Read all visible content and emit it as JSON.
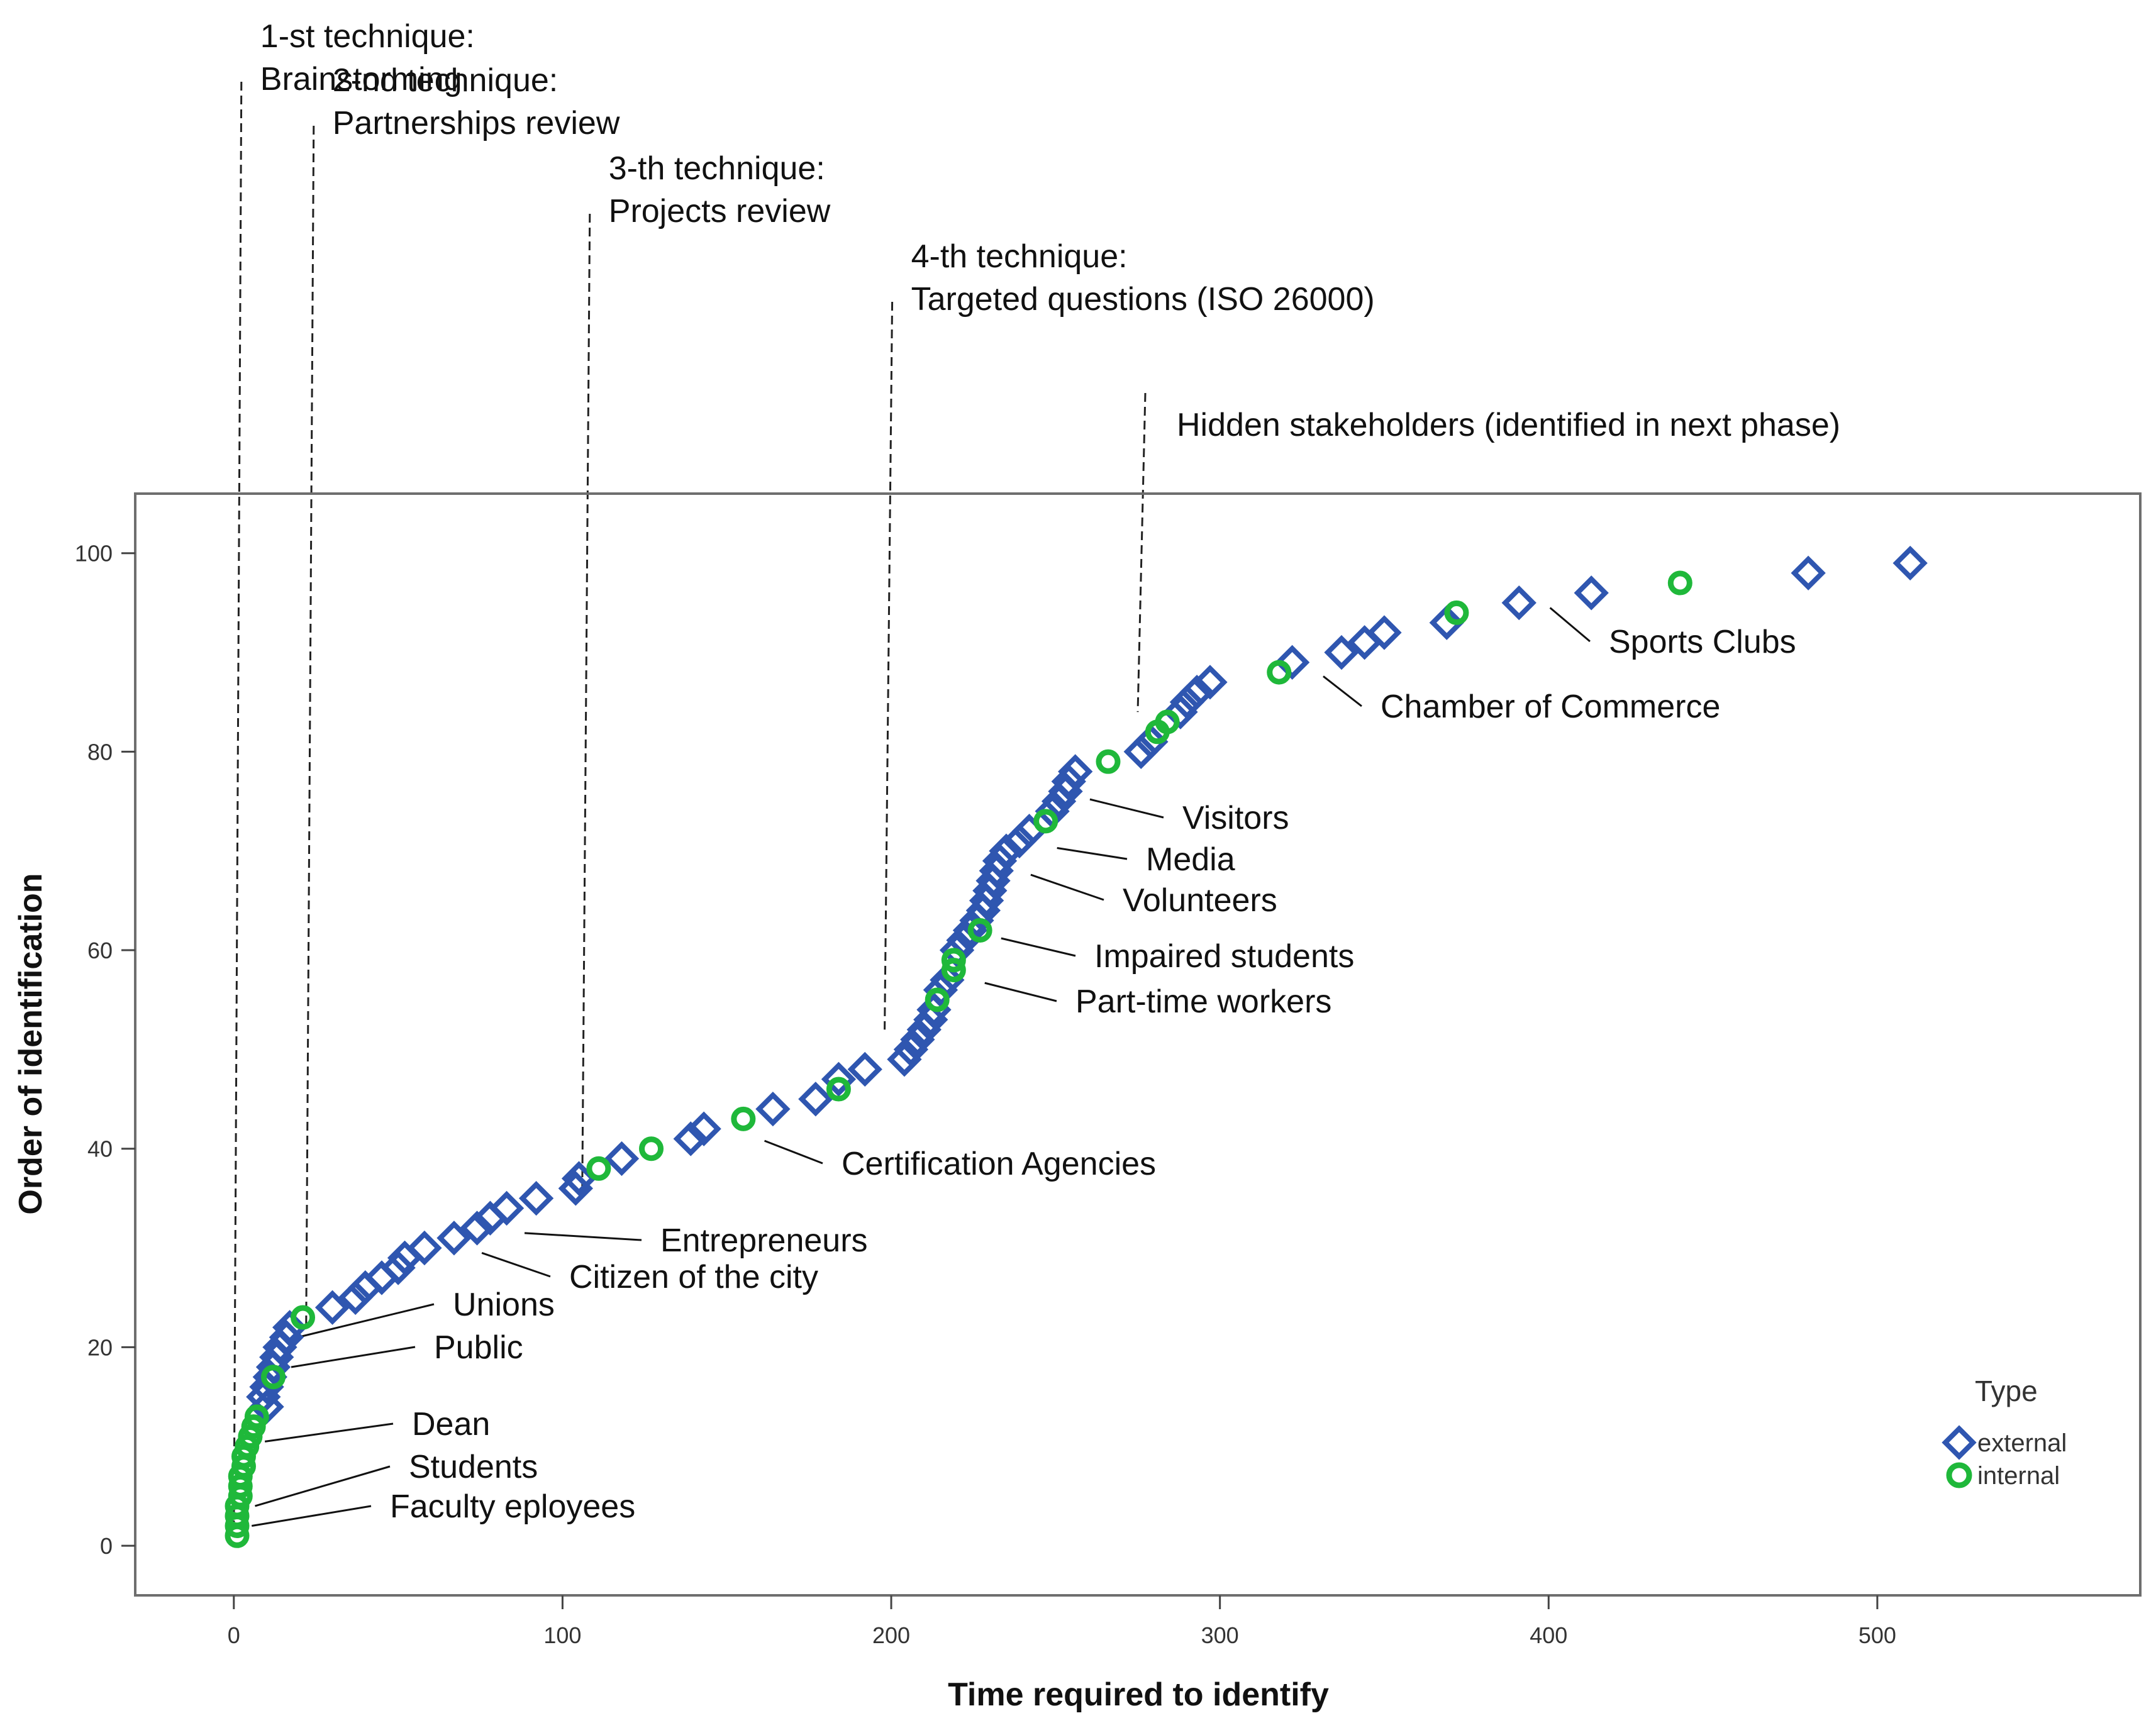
{
  "chart_data": {
    "type": "scatter",
    "xlabel": "Time required to identify",
    "ylabel": "Order of identification",
    "xlim": [
      -30,
      580
    ],
    "ylim": [
      -5,
      106
    ],
    "xticks": [
      0,
      100,
      200,
      300,
      400,
      500
    ],
    "yticks": [
      0,
      20,
      40,
      60,
      80,
      100
    ],
    "legend": {
      "title": "Type",
      "position": "bottom-right",
      "entries": [
        {
          "name": "external",
          "marker": "diamond",
          "color": "#2f56b0"
        },
        {
          "name": "internal",
          "marker": "circle",
          "color": "#1fb83a"
        }
      ]
    },
    "series": [
      {
        "name": "external",
        "marker": "diamond",
        "color": "#2f56b0",
        "points": [
          [
            10,
            14
          ],
          [
            9,
            15
          ],
          [
            10,
            16
          ],
          [
            11,
            17
          ],
          [
            12,
            18
          ],
          [
            13,
            19
          ],
          [
            14,
            20
          ],
          [
            16,
            21
          ],
          [
            17,
            22
          ],
          [
            30,
            24
          ],
          [
            37,
            25
          ],
          [
            40,
            26
          ],
          [
            45,
            27
          ],
          [
            50,
            28
          ],
          [
            52,
            29
          ],
          [
            58,
            30
          ],
          [
            67,
            31
          ],
          [
            74,
            32
          ],
          [
            78,
            33
          ],
          [
            83,
            34
          ],
          [
            92,
            35
          ],
          [
            104,
            36
          ],
          [
            105,
            37
          ],
          [
            118,
            39
          ],
          [
            139,
            41
          ],
          [
            143,
            42
          ],
          [
            164,
            44
          ],
          [
            177,
            45
          ],
          [
            184,
            47
          ],
          [
            192,
            48
          ],
          [
            204,
            49
          ],
          [
            206,
            50
          ],
          [
            208,
            51
          ],
          [
            210,
            52
          ],
          [
            212,
            53
          ],
          [
            213,
            54
          ],
          [
            215,
            56
          ],
          [
            217,
            57
          ],
          [
            220,
            60
          ],
          [
            222,
            61
          ],
          [
            224,
            62
          ],
          [
            226,
            63
          ],
          [
            228,
            64
          ],
          [
            229,
            65
          ],
          [
            230,
            66
          ],
          [
            231,
            67
          ],
          [
            232,
            68
          ],
          [
            233,
            69
          ],
          [
            235,
            70
          ],
          [
            239,
            71
          ],
          [
            242,
            72
          ],
          [
            249,
            74
          ],
          [
            251,
            75
          ],
          [
            253,
            76
          ],
          [
            254,
            77
          ],
          [
            256,
            78
          ],
          [
            276,
            80
          ],
          [
            279,
            81
          ],
          [
            288,
            84
          ],
          [
            290,
            85
          ],
          [
            293,
            86
          ],
          [
            297,
            87
          ],
          [
            322,
            89
          ],
          [
            337,
            90
          ],
          [
            344,
            91
          ],
          [
            350,
            92
          ],
          [
            369,
            93
          ],
          [
            391,
            95
          ],
          [
            413,
            96
          ],
          [
            479,
            98
          ],
          [
            510,
            99
          ]
        ]
      },
      {
        "name": "internal",
        "marker": "circle",
        "color": "#1fb83a",
        "points": [
          [
            1,
            1
          ],
          [
            1,
            2
          ],
          [
            1,
            3
          ],
          [
            1,
            4
          ],
          [
            2,
            5
          ],
          [
            2,
            6
          ],
          [
            2,
            7
          ],
          [
            3,
            8
          ],
          [
            3,
            9
          ],
          [
            4,
            10
          ],
          [
            5,
            11
          ],
          [
            6,
            12
          ],
          [
            7,
            13
          ],
          [
            12,
            17
          ],
          [
            21,
            23
          ],
          [
            111,
            38
          ],
          [
            127,
            40
          ],
          [
            155,
            43
          ],
          [
            184,
            46
          ],
          [
            214,
            55
          ],
          [
            219,
            58
          ],
          [
            219,
            59
          ],
          [
            227,
            62
          ],
          [
            247,
            73
          ],
          [
            266,
            79
          ],
          [
            281,
            82
          ],
          [
            284,
            83
          ],
          [
            318,
            88
          ],
          [
            372,
            94
          ],
          [
            440,
            97
          ]
        ]
      }
    ],
    "annotations": [
      {
        "label": "Faculty eployees",
        "x": 2,
        "y": 2
      },
      {
        "label": "Students",
        "x": 3,
        "y": 4
      },
      {
        "label": "Dean",
        "x": 6,
        "y": 10.5
      },
      {
        "label": "Public",
        "x": 14,
        "y": 18
      },
      {
        "label": "Unions",
        "x": 16,
        "y": 21
      },
      {
        "label": "Citizen of the city",
        "x": 72,
        "y": 29.5
      },
      {
        "label": "Entrepreneurs",
        "x": 85,
        "y": 31.5
      },
      {
        "label": "Certification Agencies",
        "x": 158,
        "y": 40.8
      },
      {
        "label": "Part-time workers",
        "x": 225,
        "y": 56.7
      },
      {
        "label": "Impaired students",
        "x": 230,
        "y": 61.2
      },
      {
        "label": "Volunteers",
        "x": 239,
        "y": 67.6
      },
      {
        "label": "Media",
        "x": 247,
        "y": 70.3
      },
      {
        "label": "Visitors",
        "x": 257,
        "y": 75.2
      },
      {
        "label": "Chamber of Commerce",
        "x": 328,
        "y": 87.6
      },
      {
        "label": "Sports Clubs",
        "x": 397,
        "y": 94.5
      }
    ],
    "techniques": [
      {
        "line1": "1-st technique:",
        "line2": "Brainstorming",
        "x": 0
      },
      {
        "line1": "2-nd technique:",
        "line2": "Partnerships review",
        "x": 22
      },
      {
        "line1": "3-th technique:",
        "line2": "Projects review",
        "x": 106
      },
      {
        "line1": "4-th technique:",
        "line2": "Targeted questions (ISO 26000)",
        "x": 198
      },
      {
        "line1": "Hidden stakeholders (identified in next phase)",
        "line2": "",
        "x": 275
      }
    ]
  }
}
